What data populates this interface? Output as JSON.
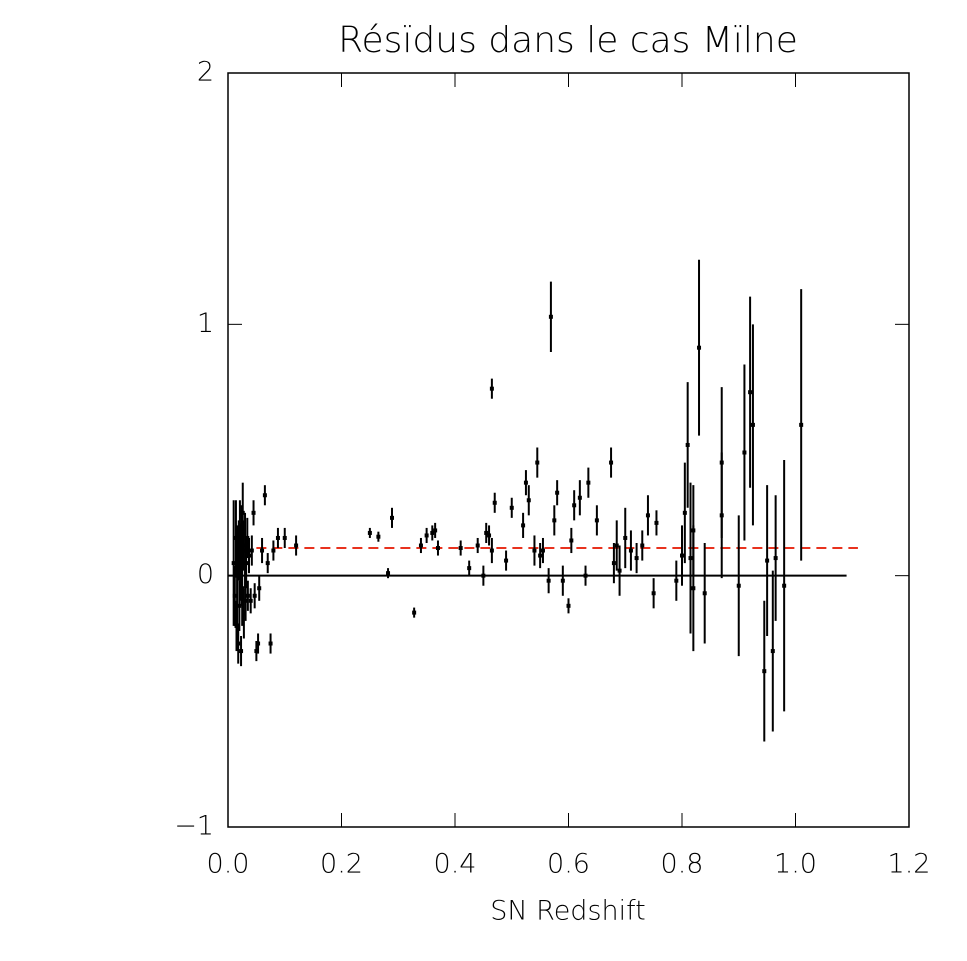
{
  "chart_data": {
    "type": "scatter",
    "title": "Résïdus dans le cas Mïlne",
    "x_label": "SN Redshift",
    "xlim": [
      0,
      1.2
    ],
    "ylim": [
      -1,
      2
    ],
    "xticks": [
      {
        "value": 0,
        "label": "0.0"
      },
      {
        "value": 0.2,
        "label": "0.2"
      },
      {
        "value": 0.4,
        "label": "0.4"
      },
      {
        "value": 0.6,
        "label": "0.6"
      },
      {
        "value": 0.8,
        "label": "0.8"
      },
      {
        "value": 1.0,
        "label": "1.0"
      },
      {
        "value": 1.2,
        "label": "1.2"
      }
    ],
    "yticks": [
      {
        "value": -1,
        "label": "−1"
      },
      0,
      1,
      2
    ],
    "color": "#000000",
    "x": [
      0.01,
      0.012,
      0.014,
      0.015,
      0.016,
      0.018,
      0.019,
      0.02,
      0.021,
      0.022,
      0.023,
      0.024,
      0.025,
      0.026,
      0.027,
      0.028,
      0.03,
      0.031,
      0.032,
      0.034,
      0.035,
      0.037,
      0.04,
      0.042,
      0.045,
      0.047,
      0.05,
      0.053,
      0.055,
      0.06,
      0.065,
      0.07,
      0.075,
      0.08,
      0.088,
      0.1,
      0.12,
      0.25,
      0.265,
      0.282,
      0.289,
      0.328,
      0.34,
      0.35,
      0.36,
      0.365,
      0.37,
      0.41,
      0.425,
      0.44,
      0.45,
      0.455,
      0.46,
      0.465,
      0.465,
      0.47,
      0.49,
      0.5,
      0.52,
      0.525,
      0.53,
      0.54,
      0.545,
      0.55,
      0.555,
      0.569,
      0.565,
      0.575,
      0.58,
      0.59,
      0.6,
      0.605,
      0.61,
      0.62,
      0.63,
      0.635,
      0.65,
      0.675,
      0.68,
      0.685,
      0.69,
      0.7,
      0.71,
      0.72,
      0.73,
      0.74,
      0.75,
      0.755,
      0.79,
      0.8,
      0.805,
      0.81,
      0.815,
      0.82,
      0.82,
      0.83,
      0.84,
      0.87,
      0.87,
      0.9,
      0.91,
      0.92,
      0.925,
      0.945,
      0.95,
      0.96,
      0.965,
      0.98,
      1.01
    ],
    "values": [
      0.05,
      -0.08,
      0.15,
      -0.2,
      0.0,
      -0.27,
      0.1,
      -0.12,
      0.2,
      0.05,
      -0.3,
      0.08,
      -0.05,
      0.25,
      0.12,
      -0.15,
      0.1,
      -0.1,
      0.05,
      0.15,
      -0.08,
      0.08,
      -0.1,
      0.1,
      0.25,
      -0.08,
      -0.3,
      -0.27,
      -0.05,
      0.1,
      0.32,
      0.05,
      -0.27,
      0.1,
      0.15,
      0.15,
      0.12,
      0.17,
      0.155,
      0.01,
      0.23,
      -0.147,
      0.12,
      0.16,
      0.17,
      0.18,
      0.11,
      0.11,
      0.03,
      0.12,
      0.0,
      0.17,
      0.16,
      0.1,
      0.744,
      0.29,
      0.06,
      0.27,
      0.2,
      0.37,
      0.3,
      0.1,
      0.45,
      0.08,
      0.1,
      1.03,
      -0.02,
      0.22,
      0.33,
      -0.02,
      -0.12,
      0.14,
      0.28,
      0.31,
      0.0,
      0.37,
      0.22,
      0.45,
      0.05,
      0.12,
      0.02,
      0.15,
      0.1,
      0.07,
      0.12,
      0.24,
      -0.07,
      0.21,
      -0.02,
      0.08,
      0.25,
      0.52,
      0.07,
      -0.05,
      0.18,
      0.907,
      -0.07,
      0.45,
      0.24,
      -0.04,
      0.49,
      0.73,
      0.6,
      -0.38,
      0.06,
      -0.3,
      0.07,
      -0.04,
      0.6
    ],
    "errors": [
      0.25,
      0.12,
      0.15,
      0.1,
      0.2,
      0.08,
      0.12,
      0.1,
      0.1,
      0.15,
      0.06,
      0.2,
      0.15,
      0.12,
      0.1,
      0.1,
      0.15,
      0.08,
      0.1,
      0.08,
      0.06,
      0.07,
      0.05,
      0.06,
      0.05,
      0.05,
      0.04,
      0.04,
      0.05,
      0.05,
      0.04,
      0.04,
      0.04,
      0.04,
      0.04,
      0.04,
      0.04,
      0.02,
      0.02,
      0.02,
      0.04,
      0.02,
      0.03,
      0.03,
      0.03,
      0.03,
      0.03,
      0.03,
      0.03,
      0.03,
      0.04,
      0.04,
      0.04,
      0.05,
      0.04,
      0.04,
      0.04,
      0.04,
      0.05,
      0.05,
      0.06,
      0.06,
      0.06,
      0.05,
      0.05,
      0.14,
      0.05,
      0.06,
      0.05,
      0.06,
      0.03,
      0.05,
      0.06,
      0.07,
      0.04,
      0.06,
      0.06,
      0.06,
      0.08,
      0.1,
      0.1,
      0.12,
      0.08,
      0.06,
      0.06,
      0.08,
      0.06,
      0.05,
      0.08,
      0.12,
      0.2,
      0.25,
      0.3,
      0.25,
      0.18,
      0.35,
      0.2,
      0.3,
      0.25,
      0.28,
      0.35,
      0.38,
      0.4,
      0.28,
      0.3,
      0.32,
      0.25,
      0.5,
      0.54
    ],
    "hlines": [
      {
        "y": 0,
        "x": [
          0,
          1.09
        ],
        "color": "#000000",
        "style": "solid"
      },
      {
        "y": 0.11,
        "x": [
          0.05,
          1.11
        ],
        "color": "#e8321e",
        "style": "dashed"
      }
    ]
  }
}
